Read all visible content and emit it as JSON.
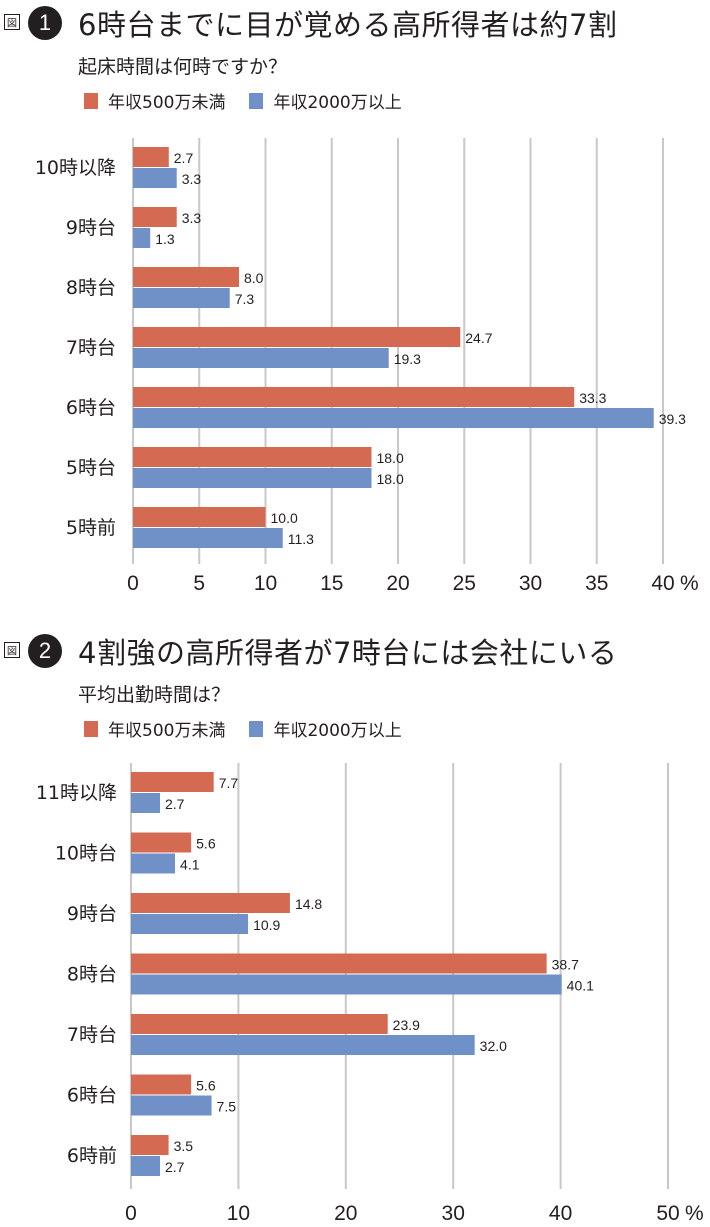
{
  "colors": {
    "under500": "#d46a52",
    "over2000": "#7090c8",
    "grid": "#c8c8c8"
  },
  "figure_prefix": "図",
  "chart_data": [
    {
      "type": "bar",
      "orientation": "horizontal",
      "figure_number": "1",
      "title": "6時台までに目が覚める高所得者は約7割",
      "subtitle": "起床時間は何時ですか？",
      "xlabel": "",
      "ylabel": "",
      "unit_label": "%",
      "xlim": [
        0,
        40
      ],
      "xticks": [
        "0",
        "5",
        "10",
        "15",
        "20",
        "25",
        "30",
        "35",
        "40"
      ],
      "grid": true,
      "legend_position": "top-left",
      "categories": [
        "10時以降",
        "9時台",
        "8時台",
        "7時台",
        "6時台",
        "5時台",
        "5時前"
      ],
      "series": [
        {
          "name": "年収500万未満",
          "values": [
            2.7,
            3.3,
            8.0,
            24.7,
            33.3,
            18.0,
            10.0
          ],
          "labels": [
            "2.7",
            "3.3",
            "8.0",
            "24.7",
            "33.3",
            "18.0",
            "10.0"
          ]
        },
        {
          "name": "年収2000万以上",
          "values": [
            3.3,
            1.3,
            7.3,
            19.3,
            39.3,
            18.0,
            11.3
          ],
          "labels": [
            "3.3",
            "1.3",
            "7.3",
            "19.3",
            "39.3",
            "18.0",
            "11.3"
          ]
        }
      ]
    },
    {
      "type": "bar",
      "orientation": "horizontal",
      "figure_number": "2",
      "title": "4割強の高所得者が7時台には会社にいる",
      "subtitle": "平均出勤時間は？",
      "xlabel": "",
      "ylabel": "",
      "unit_label": "%",
      "xlim": [
        0,
        50
      ],
      "xticks": [
        "0",
        "10",
        "20",
        "30",
        "40",
        "50"
      ],
      "grid": true,
      "legend_position": "top-left",
      "categories": [
        "11時以降",
        "10時台",
        "9時台",
        "8時台",
        "7時台",
        "6時台",
        "6時前"
      ],
      "series": [
        {
          "name": "年収500万未満",
          "values": [
            7.7,
            5.6,
            14.8,
            38.7,
            23.9,
            5.6,
            3.5
          ],
          "labels": [
            "7.7",
            "5.6",
            "14.8",
            "38.7",
            "23.9",
            "5.6",
            "3.5"
          ]
        },
        {
          "name": "年収2000万以上",
          "values": [
            2.7,
            4.1,
            10.9,
            40.1,
            32.0,
            7.5,
            2.7
          ],
          "labels": [
            "2.7",
            "4.1",
            "10.9",
            "40.1",
            "32.0",
            "7.5",
            "2.7"
          ]
        }
      ]
    }
  ]
}
